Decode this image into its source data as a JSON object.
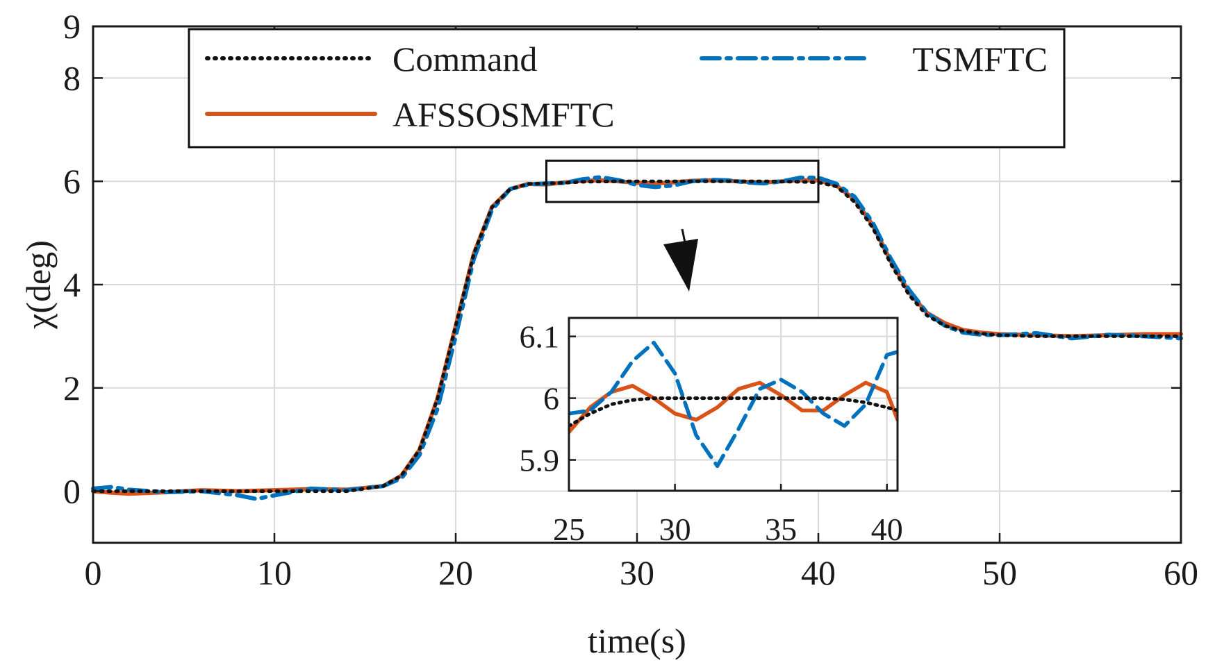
{
  "chart_data": {
    "type": "line",
    "title": "",
    "xlabel": "time(s)",
    "ylabel": "χ(deg)",
    "xlim": [
      0,
      60
    ],
    "ylim": [
      -1,
      9
    ],
    "xticks": [
      0,
      10,
      20,
      30,
      40,
      50,
      60
    ],
    "yticks": [
      0,
      2,
      4,
      6,
      8,
      9
    ],
    "grid": true,
    "legend_position": "top",
    "series": [
      {
        "name": "Command",
        "style": "dotted",
        "color": "#111111",
        "x": [
          0,
          2,
          4,
          6,
          8,
          10,
          12,
          14,
          16,
          17,
          18,
          19,
          20,
          21,
          22,
          23,
          24,
          25,
          26,
          27,
          28,
          29,
          30,
          31,
          32,
          33,
          34,
          35,
          36,
          37,
          38,
          39,
          40,
          41,
          42,
          43,
          44,
          45,
          46,
          47,
          48,
          49,
          50,
          52,
          54,
          56,
          58,
          60
        ],
        "y": [
          0,
          0,
          0,
          0,
          0,
          0,
          0,
          0,
          0.1,
          0.3,
          0.8,
          1.8,
          3.2,
          4.6,
          5.5,
          5.85,
          5.95,
          5.96,
          5.97,
          5.99,
          5.995,
          6.0,
          6.0,
          6.0,
          6.0,
          6.0,
          6.0,
          6.0,
          6.0,
          6.0,
          5.995,
          5.99,
          5.98,
          5.9,
          5.6,
          5.1,
          4.4,
          3.8,
          3.4,
          3.2,
          3.1,
          3.05,
          3.02,
          3.0,
          3.0,
          3.0,
          3.0,
          3.0
        ]
      },
      {
        "name": "AFSSOSMFTC",
        "style": "solid",
        "color": "#d95319",
        "x": [
          0,
          1,
          2,
          4,
          6,
          8,
          10,
          12,
          14,
          16,
          17,
          18,
          19,
          20,
          21,
          22,
          23,
          24,
          25,
          26,
          27,
          28,
          29,
          30,
          31,
          32,
          33,
          34,
          35,
          36,
          37,
          38,
          39,
          40,
          41,
          42,
          43,
          44,
          45,
          46,
          47,
          48,
          49,
          50,
          52,
          54,
          56,
          58,
          60
        ],
        "y": [
          0,
          -0.03,
          -0.05,
          -0.02,
          0.02,
          0.0,
          0.02,
          0.04,
          0.03,
          0.1,
          0.3,
          0.8,
          1.8,
          3.2,
          4.6,
          5.5,
          5.85,
          5.95,
          5.94,
          5.98,
          6.01,
          6.02,
          6.0,
          5.97,
          5.96,
          5.98,
          6.01,
          6.02,
          6.01,
          5.99,
          5.98,
          6.0,
          6.02,
          6.02,
          5.92,
          5.65,
          5.15,
          4.45,
          3.85,
          3.45,
          3.25,
          3.12,
          3.07,
          3.04,
          3.02,
          3.0,
          3.02,
          3.04,
          3.04
        ]
      },
      {
        "name": "TSMFTC",
        "style": "dashdot",
        "color": "#0072bd",
        "x": [
          0,
          1,
          2,
          4,
          6,
          8,
          9,
          10,
          12,
          14,
          16,
          17,
          18,
          19,
          20,
          21,
          22,
          23,
          24,
          25,
          26,
          27,
          28,
          29,
          30,
          31,
          32,
          33,
          34,
          35,
          36,
          37,
          38,
          39,
          40,
          41,
          42,
          43,
          44,
          45,
          46,
          47,
          48,
          49,
          50,
          52,
          54,
          56,
          58,
          60
        ],
        "y": [
          0.05,
          0.08,
          0.03,
          -0.02,
          0.0,
          -0.08,
          -0.15,
          -0.08,
          0.05,
          0.02,
          0.1,
          0.25,
          0.7,
          1.6,
          3.0,
          4.5,
          5.45,
          5.85,
          5.94,
          5.96,
          5.97,
          6.04,
          6.08,
          6.02,
          5.93,
          5.89,
          5.92,
          6.0,
          6.03,
          6.02,
          5.98,
          5.96,
          6.0,
          6.07,
          6.07,
          5.95,
          5.7,
          5.2,
          4.5,
          3.9,
          3.45,
          3.2,
          3.07,
          3.03,
          3.02,
          3.06,
          2.96,
          3.03,
          3.0,
          2.96
        ]
      }
    ],
    "annotations": {
      "zoom_box": {
        "xlim": [
          25,
          40
        ],
        "ylim": [
          5.6,
          6.4
        ]
      },
      "arrow": "points from zoom box to inset"
    },
    "inset": {
      "xlim": [
        25,
        40.5
      ],
      "ylim": [
        5.85,
        6.13
      ],
      "xticks": [
        25,
        30,
        35,
        40
      ],
      "yticks": [
        5.9,
        6.0,
        6.1
      ],
      "ytick_labels": [
        "5.9",
        "6",
        "6.1"
      ],
      "grid": true,
      "series": [
        {
          "name": "Command",
          "x": [
            25,
            26,
            27,
            28,
            29,
            30,
            31,
            32,
            33,
            34,
            35,
            36,
            37,
            38,
            39,
            40,
            40.5
          ],
          "y": [
            5.955,
            5.975,
            5.99,
            5.997,
            6.0,
            6.0,
            6.0,
            6.0,
            6.0,
            6.0,
            6.0,
            6.0,
            6.0,
            5.998,
            5.993,
            5.985,
            5.98
          ]
        },
        {
          "name": "AFSSOSMFTC",
          "x": [
            25,
            26,
            27,
            28,
            29,
            30,
            31,
            32,
            33,
            34,
            35,
            36,
            37,
            38,
            39,
            40,
            40.5
          ],
          "y": [
            5.945,
            5.985,
            6.01,
            6.02,
            6.0,
            5.975,
            5.965,
            5.985,
            6.015,
            6.025,
            6.005,
            5.98,
            5.98,
            6.005,
            6.025,
            6.01,
            5.965
          ]
        },
        {
          "name": "TSMFTC",
          "x": [
            25,
            26,
            27,
            28,
            29,
            30,
            31,
            32,
            33,
            34,
            35,
            36,
            37,
            38,
            39,
            40,
            40.5
          ],
          "y": [
            5.975,
            5.98,
            6.01,
            6.06,
            6.09,
            6.04,
            5.94,
            5.89,
            5.95,
            6.015,
            6.03,
            6.01,
            5.975,
            5.955,
            5.99,
            6.07,
            6.075
          ]
        }
      ]
    }
  }
}
